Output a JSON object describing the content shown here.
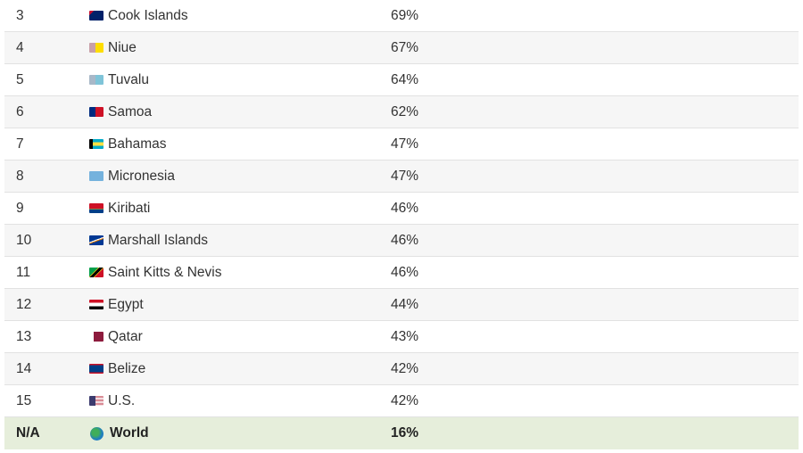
{
  "rows": [
    {
      "rank": "3",
      "country": "Cook Islands",
      "flag": "cook-islands-flag-icon",
      "value": "69%"
    },
    {
      "rank": "4",
      "country": "Niue",
      "flag": "niue-flag-icon",
      "value": "67%"
    },
    {
      "rank": "5",
      "country": "Tuvalu",
      "flag": "tuvalu-flag-icon",
      "value": "64%"
    },
    {
      "rank": "6",
      "country": "Samoa",
      "flag": "samoa-flag-icon",
      "value": "62%"
    },
    {
      "rank": "7",
      "country": "Bahamas",
      "flag": "bahamas-flag-icon",
      "value": "47%"
    },
    {
      "rank": "8",
      "country": "Micronesia",
      "flag": "micronesia-flag-icon",
      "value": "47%"
    },
    {
      "rank": "9",
      "country": "Kiribati",
      "flag": "kiribati-flag-icon",
      "value": "46%"
    },
    {
      "rank": "10",
      "country": "Marshall Islands",
      "flag": "marshall-islands-flag-icon",
      "value": "46%"
    },
    {
      "rank": "11",
      "country": "Saint Kitts & Nevis",
      "flag": "saint-kitts-nevis-flag-icon",
      "value": "46%"
    },
    {
      "rank": "12",
      "country": "Egypt",
      "flag": "egypt-flag-icon",
      "value": "44%"
    },
    {
      "rank": "13",
      "country": "Qatar",
      "flag": "qatar-flag-icon",
      "value": "43%"
    },
    {
      "rank": "14",
      "country": "Belize",
      "flag": "belize-flag-icon",
      "value": "42%"
    },
    {
      "rank": "15",
      "country": "U.S.",
      "flag": "us-flag-icon",
      "value": "42%"
    }
  ],
  "world": {
    "rank": "N/A",
    "country": "World",
    "icon": "globe-icon",
    "value": "16%"
  },
  "colors": {
    "world_row_bg": "#e6eedb",
    "alt_row_bg": "#f6f6f6"
  }
}
